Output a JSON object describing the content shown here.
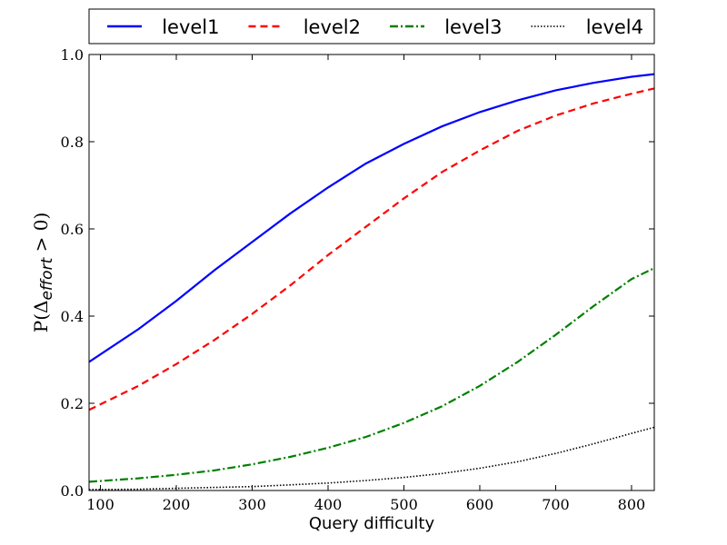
{
  "chart_data": {
    "type": "line",
    "xlabel": "Query difficulty",
    "ylabel": {
      "prefix": "P(Δ",
      "subscript": "effort",
      "suffix": " > 0)"
    },
    "xlim": [
      85,
      830
    ],
    "ylim": [
      0.0,
      1.0
    ],
    "xticks": [
      100,
      200,
      300,
      400,
      500,
      600,
      700,
      800
    ],
    "yticks": [
      0.0,
      0.2,
      0.4,
      0.6,
      0.8,
      1.0
    ],
    "ytick_labels": [
      "0.0",
      "0.2",
      "0.4",
      "0.6",
      "0.8",
      "1.0"
    ],
    "grid": false,
    "legend_position": "top, outside plot",
    "series": [
      {
        "name": "level1",
        "color": "#0000ff",
        "style": "solid",
        "x": [
          85,
          150,
          200,
          250,
          300,
          350,
          400,
          450,
          500,
          550,
          600,
          650,
          700,
          750,
          800,
          830
        ],
        "y": [
          0.295,
          0.37,
          0.435,
          0.505,
          0.57,
          0.635,
          0.695,
          0.75,
          0.795,
          0.835,
          0.868,
          0.895,
          0.918,
          0.935,
          0.949,
          0.955
        ]
      },
      {
        "name": "level2",
        "color": "#ff0000",
        "style": "dashed",
        "x": [
          85,
          150,
          200,
          250,
          300,
          350,
          400,
          450,
          500,
          550,
          600,
          650,
          700,
          750,
          800,
          830
        ],
        "y": [
          0.185,
          0.24,
          0.29,
          0.345,
          0.405,
          0.47,
          0.54,
          0.605,
          0.67,
          0.73,
          0.78,
          0.825,
          0.86,
          0.888,
          0.91,
          0.922
        ]
      },
      {
        "name": "level3",
        "color": "#008000",
        "style": "dashdot",
        "x": [
          85,
          150,
          200,
          250,
          300,
          350,
          400,
          450,
          500,
          550,
          600,
          650,
          700,
          750,
          800,
          830
        ],
        "y": [
          0.02,
          0.028,
          0.036,
          0.046,
          0.06,
          0.077,
          0.098,
          0.123,
          0.155,
          0.193,
          0.24,
          0.295,
          0.357,
          0.423,
          0.485,
          0.51
        ]
      },
      {
        "name": "level4",
        "color": "#000000",
        "style": "dotted",
        "x": [
          85,
          150,
          200,
          250,
          300,
          350,
          400,
          450,
          500,
          550,
          600,
          650,
          700,
          750,
          800,
          830
        ],
        "y": [
          0.002,
          0.003,
          0.005,
          0.007,
          0.009,
          0.013,
          0.017,
          0.023,
          0.03,
          0.039,
          0.051,
          0.066,
          0.085,
          0.107,
          0.131,
          0.145
        ]
      }
    ]
  }
}
